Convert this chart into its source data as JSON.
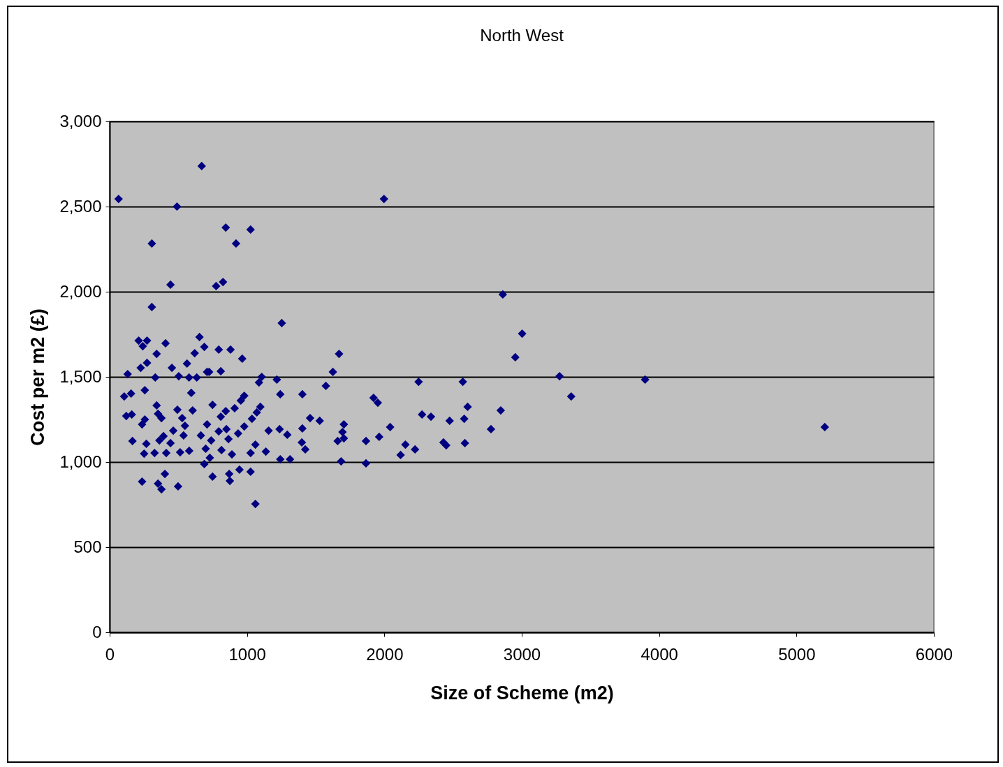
{
  "chart_data": {
    "type": "scatter",
    "title": "North West",
    "xlabel": "Size of Scheme (m2)",
    "ylabel": "Cost per m2 (£)",
    "xlim": [
      0,
      6000
    ],
    "xticks": [
      0,
      1000,
      2000,
      3000,
      4000,
      5000,
      6000
    ],
    "ylim": [
      0,
      3000
    ],
    "yticks": [
      {
        "value": 0,
        "label": "0"
      },
      {
        "value": 500,
        "label": "500"
      },
      {
        "value": 1000,
        "label": "1,000"
      },
      {
        "value": 1500,
        "label": "1,500"
      },
      {
        "value": 2000,
        "label": "2,000"
      },
      {
        "value": 2500,
        "label": "2,500"
      },
      {
        "value": 3000,
        "label": "3,000"
      }
    ],
    "grid": "y",
    "marker": "diamond",
    "series": [
      {
        "color": "#000080",
        "x": [
          65,
          670,
          490,
          307,
          845,
          1026,
          920,
          443,
          307,
          775,
          825,
          1253,
          1997,
          2862,
          3003,
          2953,
          3275,
          3360,
          3898,
          5206,
          2606,
          2571,
          2581,
          2586,
          2475,
          2450,
          2430,
          2339,
          2274,
          2249,
          2223,
          2153,
          2118,
          2042,
          1962,
          1952,
          1921,
          1866,
          1866,
          2847,
          2776,
          1670,
          1625,
          1574,
          1529,
          1459,
          1403,
          1403,
          1424,
          1399,
          1705,
          1695,
          1705,
          1660,
          1685,
          1313,
          1242,
          1293,
          1237,
          1157,
          1137,
          1242,
          1217,
          1107,
          1087,
          1097,
          1071,
          1036,
          1061,
          1026,
          1026,
          1061,
          106,
          131,
          156,
          121,
          161,
          166,
          236,
          211,
          272,
          241,
          226,
          272,
          256,
          236,
          256,
          267,
          251,
          327,
          332,
          342,
          407,
          342,
          352,
          377,
          392,
          362,
          352,
          377,
          402,
          412,
          453,
          463,
          443,
          493,
          498,
          503,
          528,
          538,
          513,
          563,
          578,
          594,
          604,
          548,
          579,
          619,
          634,
          654,
          689,
          664,
          699,
          689,
          709,
          739,
          724,
          749,
          749,
          729,
          794,
          809,
          809,
          794,
          814,
          845,
          850,
          865,
          880,
          870,
          890,
          910,
          935,
          945,
          955,
          965,
          980,
          980,
          875,
          709
        ],
        "values": [
          2545,
          2738,
          2500,
          2283,
          2377,
          2365,
          2283,
          2041,
          1910,
          2033,
          2057,
          1816,
          2545,
          1984,
          1754,
          1615,
          1504,
          1385,
          1484,
          1205,
          1324,
          1471,
          1254,
          1111,
          1242,
          1098,
          1115,
          1266,
          1279,
          1471,
          1074,
          1102,
          1041,
          1205,
          1148,
          1348,
          1377,
          1123,
          992,
          1303,
          1193,
          1635,
          1529,
          1447,
          1242,
          1258,
          1398,
          1197,
          1074,
          1115,
          1221,
          1176,
          1139,
          1123,
          1004,
          1016,
          1016,
          1160,
          1193,
          1184,
          1061,
          1398,
          1484,
          1500,
          1467,
          1324,
          1291,
          1254,
          1102,
          1053,
          943,
          754,
          1385,
          1516,
          1402,
          1270,
          1279,
          1123,
          885,
          1713,
          1713,
          1680,
          1553,
          1582,
          1422,
          1221,
          1250,
          1107,
          1049,
          1053,
          1496,
          1635,
          1697,
          1332,
          1283,
          1258,
          1152,
          1127,
          873,
          840,
          930,
          1053,
          1553,
          1184,
          1111,
          1307,
          857,
          1504,
          1258,
          1156,
          1057,
          1578,
          1496,
          1406,
          1303,
          1213,
          1066,
          1639,
          1496,
          1734,
          1676,
          1156,
          1078,
          988,
          1221,
          1127,
          1529,
          1336,
          914,
          1025,
          1660,
          1533,
          1266,
          1180,
          1070,
          1299,
          1193,
          1135,
          1660,
          930,
          1045,
          1316,
          1168,
          955,
          1361,
          1607,
          1389,
          1209,
          889,
          1529
        ]
      }
    ]
  }
}
